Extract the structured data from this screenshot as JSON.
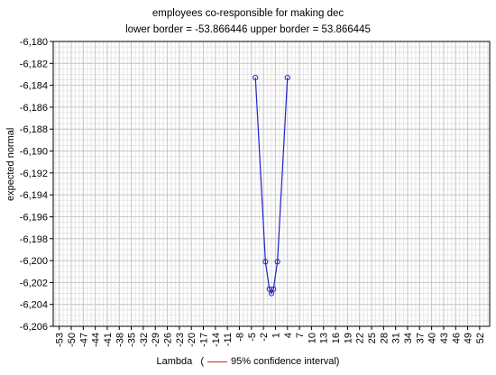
{
  "chart_data": {
    "type": "line",
    "title": "employees co-responsible for making dec",
    "subtitle": "lower border = -53.866446  upper border = 53.866445",
    "xlabel": "Lambda",
    "ylabel": "expected normal",
    "legend": {
      "open": "(",
      "label": "95% confidence interval)",
      "color": "#cc2222",
      "placement": "bottom"
    },
    "xlim": [
      -54.5,
      54.5
    ],
    "ylim": [
      -6.206,
      -6.18
    ],
    "x_ticks": [
      -53,
      -50,
      -47,
      -44,
      -41,
      -38,
      -35,
      -32,
      -29,
      -26,
      -23,
      -20,
      -17,
      -14,
      -11,
      -8,
      -5,
      -2,
      1,
      4,
      7,
      10,
      13,
      16,
      19,
      22,
      25,
      28,
      31,
      34,
      37,
      40,
      43,
      46,
      49,
      52
    ],
    "x_tick_labels": [
      "-53",
      "-50",
      "-47",
      "-44",
      "-41",
      "-38",
      "-35",
      "-32",
      "-29",
      "-26",
      "-23",
      "-20",
      "-17",
      "-14",
      "-11",
      "-8",
      "-5",
      "-2",
      "1",
      "4",
      "7",
      "10",
      "13",
      "16",
      "19",
      "22",
      "25",
      "28",
      "31",
      "34",
      "37",
      "40",
      "43",
      "46",
      "49",
      "52"
    ],
    "y_ticks": [
      -6.18,
      -6.182,
      -6.184,
      -6.186,
      -6.188,
      -6.19,
      -6.192,
      -6.194,
      -6.196,
      -6.198,
      -6.2,
      -6.202,
      -6.204,
      -6.206
    ],
    "y_tick_labels": [
      "-6,180",
      "-6,182",
      "-6,184",
      "-6,186",
      "-6,188",
      "-6,190",
      "-6,192",
      "-6,194",
      "-6,196",
      "-6,198",
      "-6,200",
      "-6,202",
      "-6,204",
      "-6,206"
    ],
    "grid": true,
    "series": [
      {
        "color": "#2222cc",
        "marker": "circle",
        "x": [
          -4,
          -1.5,
          -0.5,
          0,
          0.5,
          1.5,
          4
        ],
        "y": [
          -6.1833,
          -6.2001,
          -6.2026,
          -6.203,
          -6.2026,
          -6.2001,
          -6.1833
        ]
      }
    ]
  }
}
